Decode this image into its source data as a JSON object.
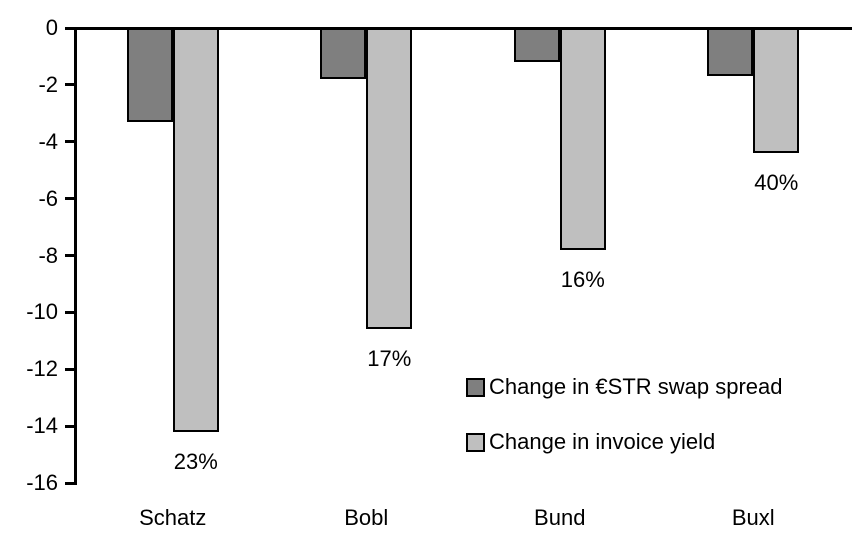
{
  "chart_data": {
    "type": "bar",
    "orientation": "vertical",
    "categories": [
      "Schatz",
      "Bobl",
      "Bund",
      "Buxl"
    ],
    "series": [
      {
        "name": "Change in €STR swap spread",
        "color": "#7F7F7F",
        "values": [
          -3.3,
          -1.8,
          -1.2,
          -1.7
        ]
      },
      {
        "name": "Change in invoice yield",
        "color": "#BFBFBF",
        "values": [
          -14.2,
          -10.6,
          -7.8,
          -4.4
        ]
      }
    ],
    "data_labels": {
      "series_index": 1,
      "labels": [
        "23%",
        "17%",
        "16%",
        "40%"
      ]
    },
    "y_axis": {
      "min": -16,
      "max": 0,
      "tick_step": 2,
      "ticks": [
        0,
        -2,
        -4,
        -6,
        -8,
        -10,
        -12,
        -14,
        -16
      ]
    },
    "x_axis": {
      "labels": [
        "Schatz",
        "Bobl",
        "Bund",
        "Buxl"
      ],
      "position": "bottom"
    },
    "grid": false,
    "legend": {
      "position": "inside-right-middle",
      "items": [
        "Change in €STR swap spread",
        "Change in invoice yield"
      ]
    },
    "colors": {
      "axis": "#000000",
      "text": "#000000",
      "background": "#FFFFFF",
      "bar_border": "#000000"
    }
  }
}
